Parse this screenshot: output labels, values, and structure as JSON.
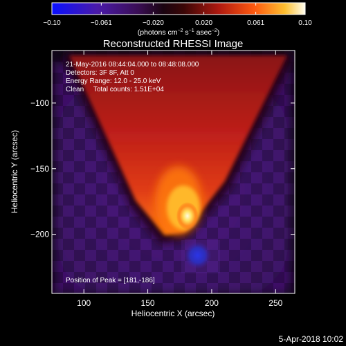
{
  "chart_data": {
    "type": "heatmap",
    "title": "Reconstructed RHESSI Image",
    "xlabel": "Heliocentric X (arcsec)",
    "ylabel": "Heliocentric Y (arcsec)",
    "xlim": [
      75,
      265
    ],
    "ylim": [
      -245,
      -60
    ],
    "x_ticks": [
      100,
      150,
      200,
      250
    ],
    "y_ticks": [
      -100,
      -150,
      -200
    ],
    "colorbar": {
      "range": [
        -0.1,
        0.1
      ],
      "tick_values": [
        -0.1,
        -0.061,
        -0.02,
        0.02,
        0.061,
        0.1
      ],
      "tick_labels": [
        "-0.10",
        "-0.061",
        "-0.020",
        "0.020",
        "0.061",
        "0.10"
      ],
      "label_parts": [
        "(photons cm",
        "-2",
        " s",
        "-1",
        " asec",
        "-2",
        ")"
      ]
    },
    "annotations": [
      "21-May-2016 08:44:04.000 to 08:48:08.000",
      "Detectors: 3F 8F, Att 0",
      "Energy Range: 12.0 - 25.0 keV",
      "Clean     Total counts: 1.51E+04"
    ],
    "peak_label": "Position of Peak = [181,-186]",
    "peak": {
      "x": 181,
      "y": -186
    },
    "negative_source": {
      "x": 189,
      "y": -216
    },
    "colors": {
      "background": "#000000",
      "field": "#3c1066",
      "negative": "#1530d8",
      "emission_dark": "#861418",
      "emission_mid": "#d6281a",
      "emission_bright": "#ffcc2a",
      "peak_core": "#fffbe0"
    }
  },
  "footer": {
    "date_stamp": "5-Apr-2018 10:02"
  }
}
